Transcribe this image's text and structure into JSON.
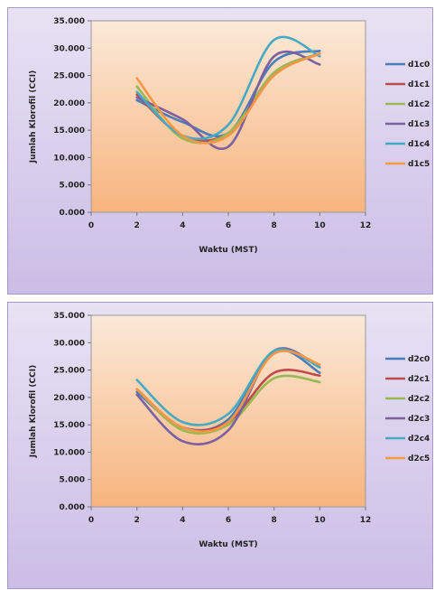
{
  "chart_data": [
    {
      "type": "line",
      "xlabel": "Waktu (MST)",
      "ylabel": "Jumlah Klorofil (CCI)",
      "xlim": [
        0,
        12
      ],
      "ylim": [
        0,
        35
      ],
      "x_ticks": [
        "0",
        "2",
        "4",
        "6",
        "8",
        "10",
        "12"
      ],
      "y_ticks": [
        "0.000",
        "5.000",
        "10.000",
        "15.000",
        "20.000",
        "25.000",
        "30.000",
        "35.000"
      ],
      "x": [
        2,
        4,
        6,
        8,
        10
      ],
      "legend_position": "right",
      "grid": false,
      "series": [
        {
          "name": "d1c0",
          "color": "#4a7ebb",
          "values": [
            20.5,
            16.5,
            14.5,
            27.5,
            29.5
          ]
        },
        {
          "name": "d1c1",
          "color": "#be4b48",
          "values": [
            21.5,
            14.0,
            14.5,
            25.5,
            29.0
          ]
        },
        {
          "name": "d1c2",
          "color": "#98b954",
          "values": [
            23.0,
            13.5,
            14.5,
            25.5,
            29.0
          ]
        },
        {
          "name": "d1c3",
          "color": "#7d60a0",
          "values": [
            21.0,
            17.0,
            12.0,
            28.5,
            27.0
          ]
        },
        {
          "name": "d1c4",
          "color": "#46aac5",
          "values": [
            22.0,
            14.0,
            16.0,
            31.5,
            28.5
          ]
        },
        {
          "name": "d1c5",
          "color": "#f79646",
          "values": [
            24.5,
            14.0,
            14.0,
            25.0,
            29.0
          ]
        }
      ]
    },
    {
      "type": "line",
      "xlabel": "Waktu (MST)",
      "ylabel": "Jumlah Klorofil (CCI)",
      "xlim": [
        0,
        12
      ],
      "ylim": [
        0,
        35
      ],
      "x_ticks": [
        "0",
        "2",
        "4",
        "6",
        "8",
        "10",
        "12"
      ],
      "y_ticks": [
        "0.000",
        "5.000",
        "10.000",
        "15.000",
        "20.000",
        "25.000",
        "30.000",
        "35.000"
      ],
      "x": [
        2,
        4,
        6,
        8,
        10
      ],
      "legend_position": "right",
      "grid": false,
      "series": [
        {
          "name": "d2c0",
          "color": "#4a7ebb",
          "values": [
            21.0,
            14.5,
            16.0,
            28.5,
            24.5
          ]
        },
        {
          "name": "d2c1",
          "color": "#be4b48",
          "values": [
            21.5,
            14.5,
            15.5,
            24.5,
            24.0
          ]
        },
        {
          "name": "d2c2",
          "color": "#98b954",
          "values": [
            21.5,
            14.0,
            15.0,
            23.5,
            22.8
          ]
        },
        {
          "name": "d2c3",
          "color": "#7d60a0",
          "values": [
            20.5,
            12.0,
            14.0,
            28.5,
            25.5
          ]
        },
        {
          "name": "d2c4",
          "color": "#46aac5",
          "values": [
            23.2,
            15.5,
            17.0,
            28.5,
            25.5
          ]
        },
        {
          "name": "d2c5",
          "color": "#f79646",
          "values": [
            21.5,
            14.5,
            15.5,
            28.0,
            26.0
          ]
        }
      ]
    }
  ]
}
